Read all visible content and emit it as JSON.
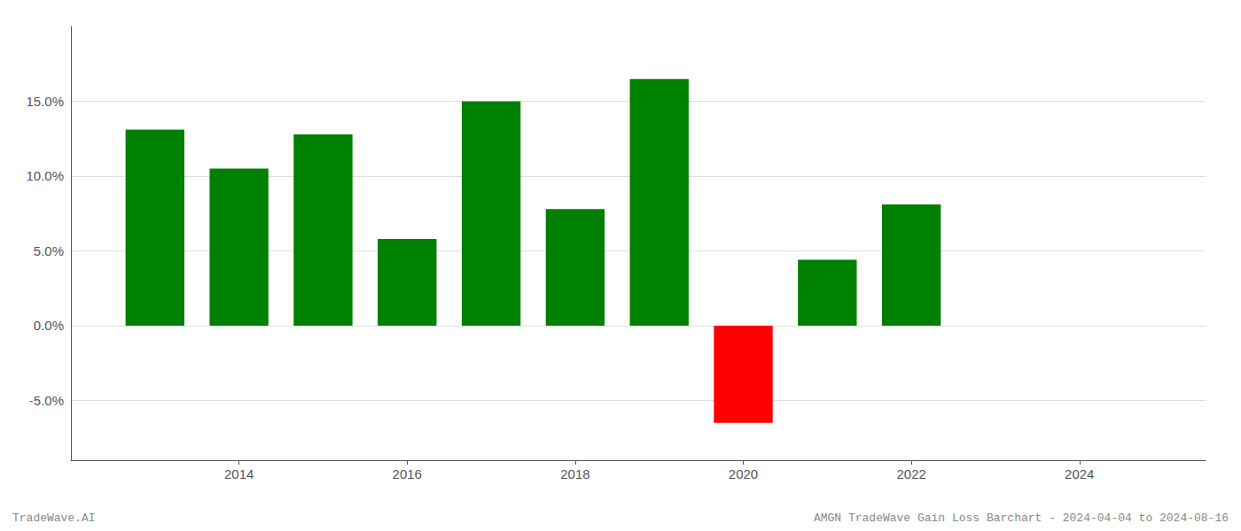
{
  "chart_data": {
    "type": "bar",
    "x": [
      2013,
      2014,
      2015,
      2016,
      2017,
      2018,
      2019,
      2020,
      2021,
      2022
    ],
    "values": [
      0.131,
      0.105,
      0.128,
      0.058,
      0.15,
      0.078,
      0.165,
      -0.065,
      0.044,
      0.081
    ],
    "colors": [
      "#008000",
      "#008000",
      "#008000",
      "#008000",
      "#008000",
      "#008000",
      "#008000",
      "#ff0000",
      "#008000",
      "#008000"
    ],
    "xlim": [
      2012.0,
      2025.5
    ],
    "xticks": [
      2014,
      2016,
      2018,
      2020,
      2022,
      2024
    ],
    "ylim": [
      -0.09,
      0.2
    ],
    "yticks": [
      {
        "value": -0.05,
        "label": "-5.0%"
      },
      {
        "value": 0.0,
        "label": "0.0%"
      },
      {
        "value": 0.05,
        "label": "5.0%"
      },
      {
        "value": 0.1,
        "label": "10.0%"
      },
      {
        "value": 0.15,
        "label": "15.0%"
      }
    ],
    "grid": true,
    "annotations": [
      "TradeWave.AI",
      "AMGN TradeWave Gain Loss Barchart - 2024-04-04 to 2024-08-16"
    ]
  }
}
